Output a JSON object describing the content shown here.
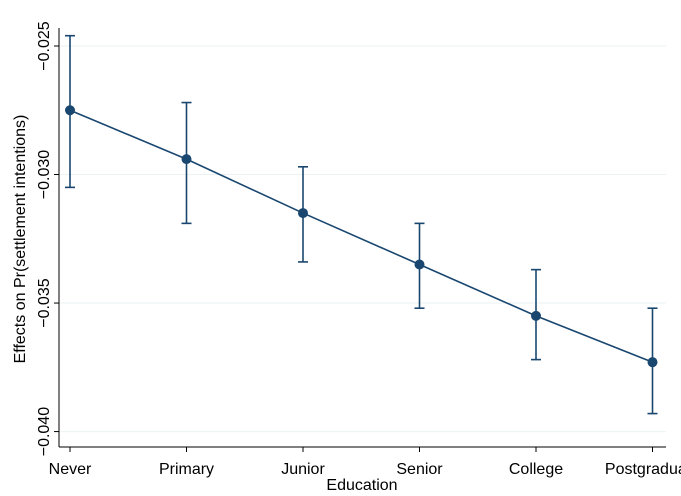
{
  "chart_data": {
    "type": "line",
    "title": "",
    "xlabel": "Education",
    "ylabel": "Effects on Pr(settlement intentions)",
    "categories": [
      "Never",
      "Primary",
      "Junior",
      "Senior",
      "College",
      "Postgraduate"
    ],
    "series": [
      {
        "values": [
          -0.0275,
          -0.0294,
          -0.0315,
          -0.0335,
          -0.0355,
          -0.0373
        ],
        "ci_lower": [
          -0.0305,
          -0.0319,
          -0.0334,
          -0.0352,
          -0.0372,
          -0.0393
        ],
        "ci_upper": [
          -0.0246,
          -0.0272,
          -0.0297,
          -0.0319,
          -0.0337,
          -0.0352
        ]
      }
    ],
    "yticks": [
      -0.025,
      -0.03,
      -0.035,
      -0.04
    ],
    "ytick_labels": [
      "−0.025",
      "−0.030",
      "−0.035",
      "−0.040"
    ],
    "ylim": [
      -0.0406,
      -0.0243
    ],
    "grid": true,
    "legend": "none",
    "colors": {
      "series": "#1a476f",
      "grid": "#eaf2f3",
      "axis": "#000000"
    }
  }
}
